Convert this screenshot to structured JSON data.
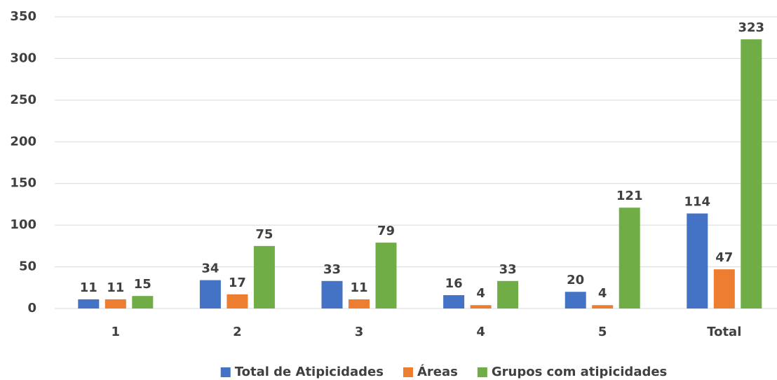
{
  "chart_data": {
    "type": "bar",
    "categories": [
      "1",
      "2",
      "3",
      "4",
      "5",
      "Total"
    ],
    "series": [
      {
        "name": "Total de Atipicidades",
        "color": "#4472c4",
        "values": [
          11,
          34,
          33,
          16,
          20,
          114
        ]
      },
      {
        "name": "Áreas",
        "color": "#ed7d31",
        "values": [
          11,
          17,
          11,
          4,
          4,
          47
        ]
      },
      {
        "name": "Grupos com atipicidades",
        "color": "#70ad47",
        "values": [
          15,
          75,
          79,
          33,
          121,
          323
        ]
      }
    ],
    "ylim": [
      0,
      350
    ],
    "yticks": [
      0,
      50,
      100,
      150,
      200,
      250,
      300,
      350
    ],
    "grid": true,
    "legend": "bottom"
  }
}
